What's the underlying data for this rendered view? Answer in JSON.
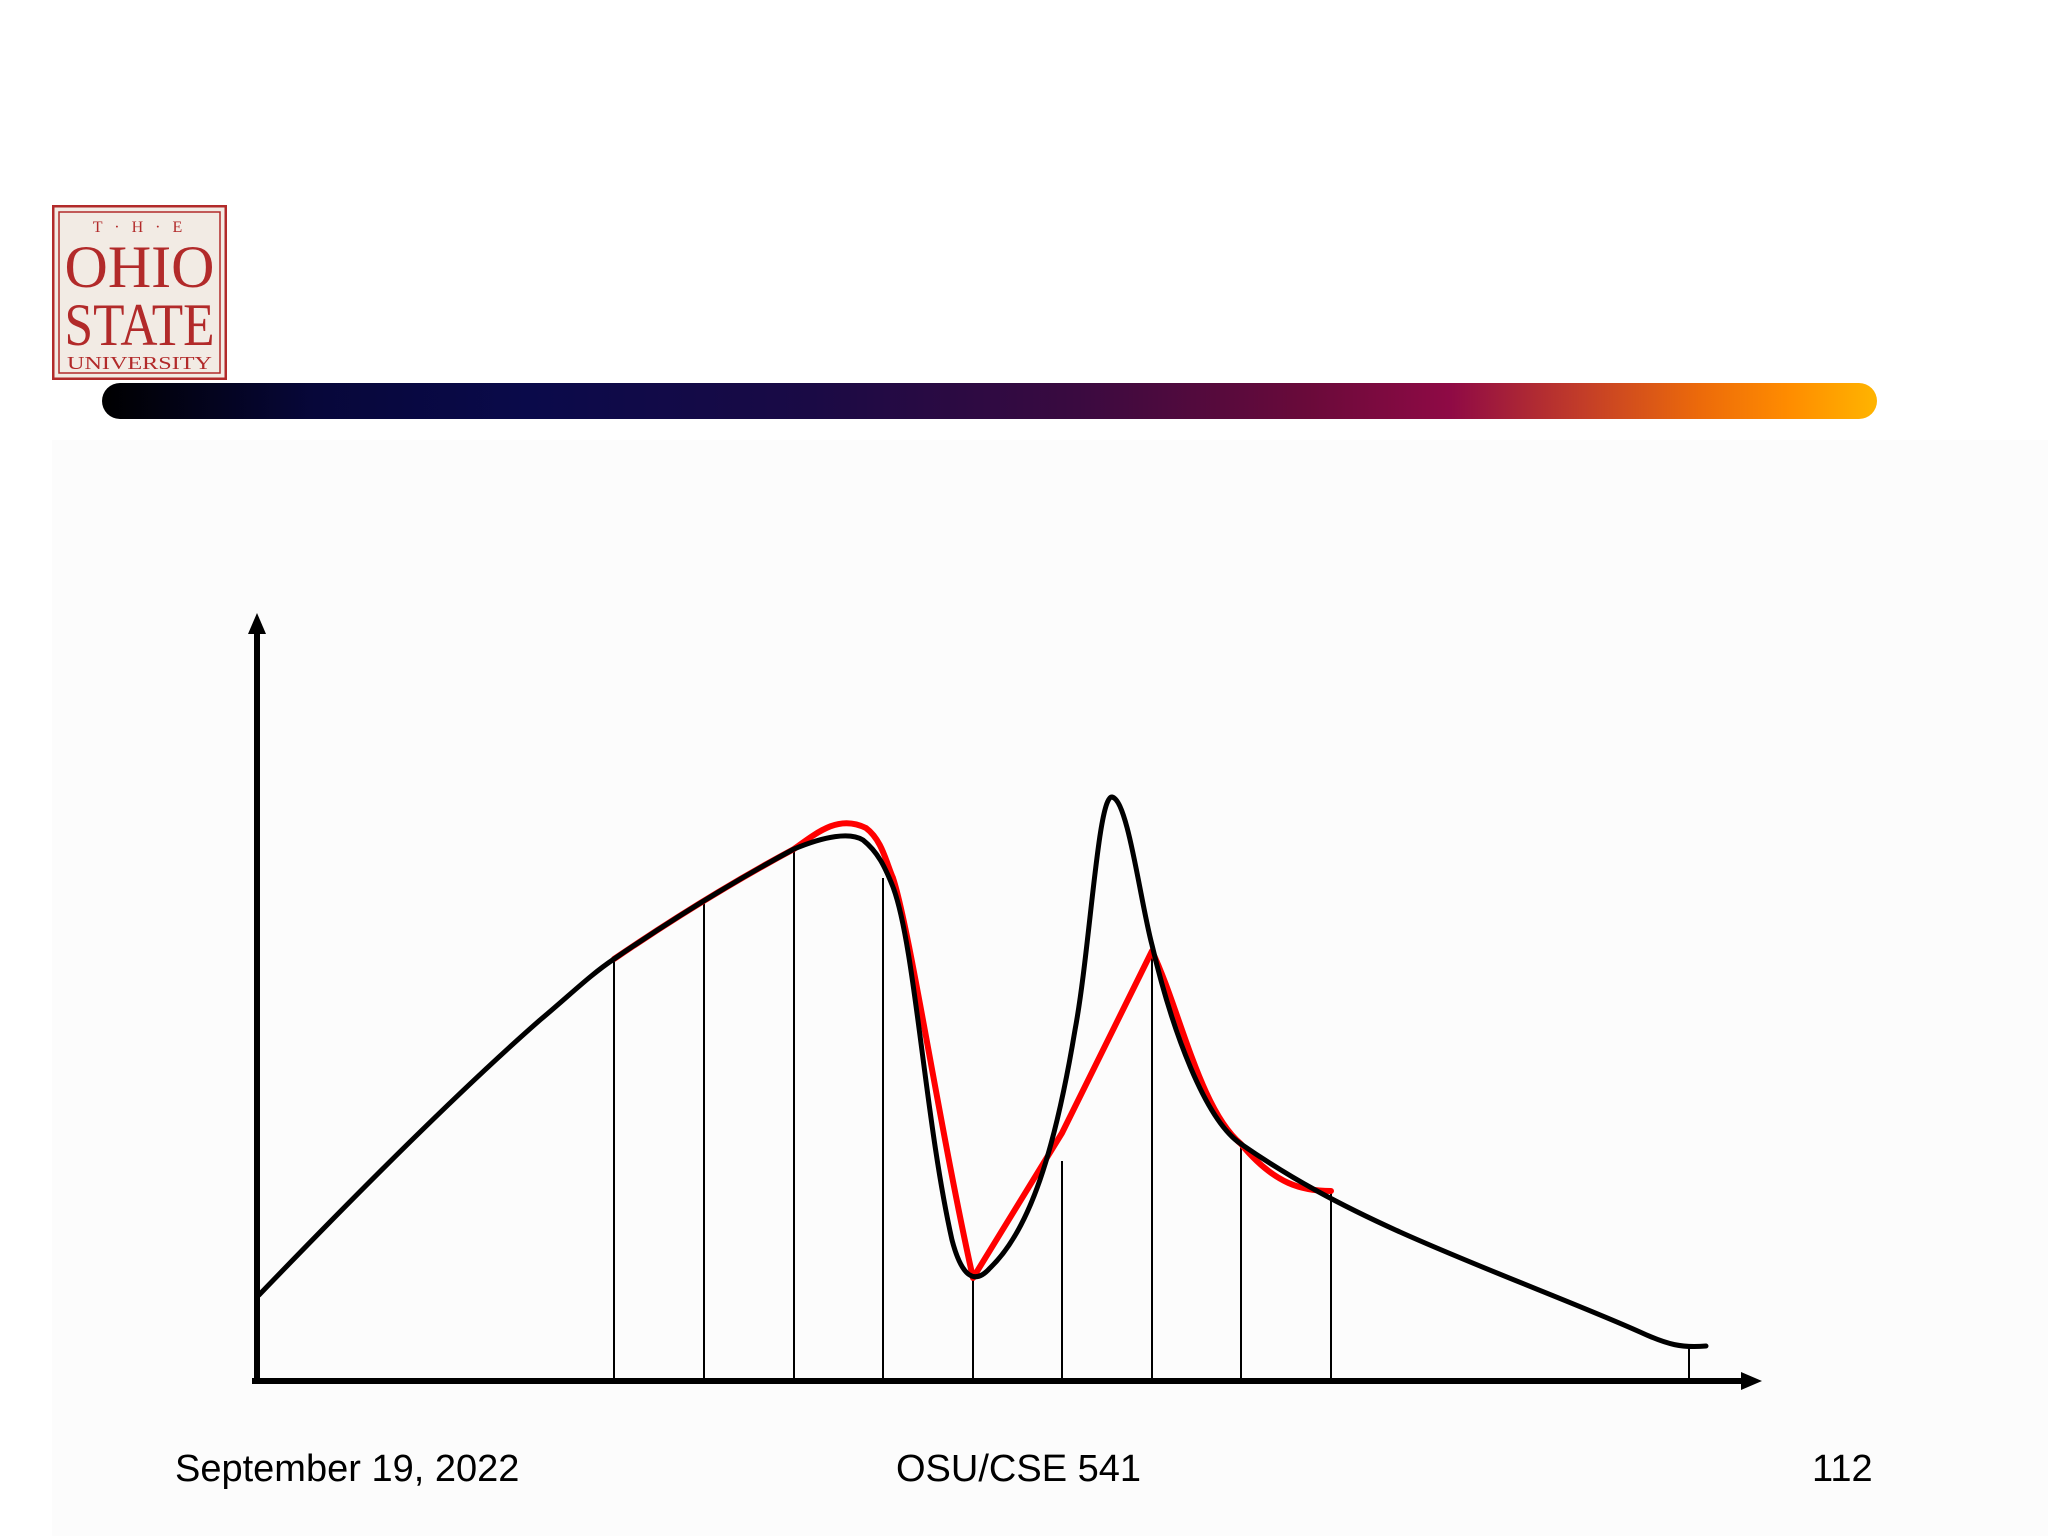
{
  "logo": {
    "line1": "T · H · E",
    "line2": "OHIO",
    "line3": "STATE",
    "line4": "UNIVERSITY"
  },
  "colors": {
    "logo_red": "#b22a2a",
    "logo_bg": "#f2ebe4",
    "curve_black": "#000000",
    "approximation_red": "#ff0000",
    "bar_start": "#000000",
    "bar_end": "#ffb400"
  },
  "footer": {
    "date": "September 19, 2022",
    "course": "OSU/CSE 541",
    "page": "112"
  }
}
